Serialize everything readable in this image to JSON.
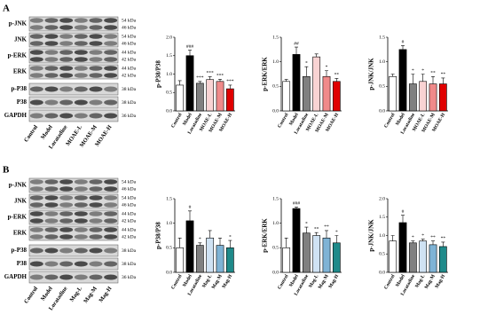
{
  "panels": [
    {
      "label": "A",
      "blot": {
        "rows": [
          {
            "name": "p-JNK",
            "kda": [
              "54 kDa",
              "46 kDa"
            ]
          },
          {
            "name": "JNK",
            "kda": [
              "54 kDa",
              "46 kDa"
            ]
          },
          {
            "name": "p-ERK",
            "kda": [
              "44 kDa",
              "42 kDa"
            ]
          },
          {
            "name": "ERK",
            "kda": [
              "44 kDa",
              "42 kDa"
            ]
          },
          {
            "name": "p-P38",
            "kda": [
              "38 kDa"
            ]
          },
          {
            "name": "P38",
            "kda": [
              "38 kDa"
            ]
          },
          {
            "name": "GAPDH",
            "kda": [
              "36 kDa"
            ]
          }
        ],
        "lanes": [
          "Control",
          "Model",
          "Loratadine",
          "MOAE-L",
          "MOAE-M",
          "MOAE-H"
        ]
      }
    },
    {
      "label": "B",
      "blot": {
        "rows": [
          {
            "name": "p-JNK",
            "kda": [
              "54 kDa",
              "46 kDa"
            ]
          },
          {
            "name": "JNK",
            "kda": [
              "54 kDa",
              "46 kDa"
            ]
          },
          {
            "name": "p-ERK",
            "kda": [
              "44 kDa",
              "42 kDa"
            ]
          },
          {
            "name": "ERK",
            "kda": [
              "44 kDa",
              "42 kDa"
            ]
          },
          {
            "name": "p-P38",
            "kda": [
              "38 kDa"
            ]
          },
          {
            "name": "P38",
            "kda": [
              "38 kDa"
            ]
          },
          {
            "name": "GAPDH",
            "kda": [
              "36 kDa"
            ]
          }
        ],
        "lanes": [
          "Control",
          "Model",
          "Loratadine",
          "Mag-L",
          "Mag-M",
          "Mag-H"
        ]
      }
    }
  ],
  "chart_data": [
    {
      "type": "bar",
      "y_label": "p-P38/P38",
      "categories": [
        "Control",
        "Model",
        "Loratadine",
        "MOAE-L",
        "MOAE-M",
        "MOAE-H"
      ],
      "values": [
        0.7,
        1.5,
        0.75,
        0.85,
        0.8,
        0.6
      ],
      "errors": [
        0.12,
        0.15,
        0.05,
        0.08,
        0.06,
        0.1
      ],
      "colors": [
        "#ffffff",
        "#000000",
        "#808080",
        "#f9d3d3",
        "#f08a8a",
        "#e00000"
      ],
      "annotations": [
        null,
        "###",
        "***",
        "***",
        "***",
        "***"
      ],
      "ylim": [
        0,
        2
      ],
      "yticks": [
        {
          "value": 0,
          "label": "0.0"
        },
        {
          "value": 0.5,
          "label": "0.5"
        },
        {
          "value": 1,
          "label": "1.0"
        },
        {
          "value": 1.5,
          "label": "1.5"
        },
        {
          "value": 2,
          "label": "2.0"
        }
      ]
    },
    {
      "type": "bar",
      "y_label": "p-ERK/ERK",
      "categories": [
        "Control",
        "Model",
        "Loratadine",
        "MOAE-L",
        "MOAE-M",
        "MOAE-H"
      ],
      "values": [
        0.6,
        1.15,
        0.7,
        1.1,
        0.7,
        0.6
      ],
      "errors": [
        0.04,
        0.15,
        0.2,
        0.06,
        0.12,
        0.06
      ],
      "colors": [
        "#ffffff",
        "#000000",
        "#808080",
        "#f9d3d3",
        "#f08a8a",
        "#e00000"
      ],
      "annotations": [
        null,
        "##",
        "*",
        null,
        "*",
        "**"
      ],
      "ylim": [
        0,
        1.5
      ],
      "yticks": [
        {
          "value": 0,
          "label": "0.0"
        },
        {
          "value": 0.5,
          "label": "0.5"
        },
        {
          "value": 1,
          "label": "1.0"
        },
        {
          "value": 1.5,
          "label": "1.5"
        }
      ]
    },
    {
      "type": "bar",
      "y_label": "p-JNK/JNK",
      "categories": [
        "Control",
        "Model",
        "Loratadine",
        "MOAE-L",
        "MOAE-M",
        "MOAE-H"
      ],
      "values": [
        0.7,
        1.25,
        0.55,
        0.6,
        0.55,
        0.55
      ],
      "errors": [
        0.05,
        0.08,
        0.2,
        0.15,
        0.15,
        0.12
      ],
      "colors": [
        "#ffffff",
        "#000000",
        "#808080",
        "#f9d3d3",
        "#f08a8a",
        "#e00000"
      ],
      "annotations": [
        null,
        "#",
        "*",
        "*",
        "**",
        "**"
      ],
      "ylim": [
        0,
        1.5
      ],
      "yticks": [
        {
          "value": 0,
          "label": "0.0"
        },
        {
          "value": 0.5,
          "label": "0.5"
        },
        {
          "value": 1,
          "label": "1.0"
        },
        {
          "value": 1.5,
          "label": "1.5"
        }
      ]
    },
    {
      "type": "bar",
      "y_label": "p-P38/P38",
      "categories": [
        "Control",
        "Model",
        "Loratadine",
        "Mag-L",
        "Mag-M",
        "Mag-H"
      ],
      "values": [
        0.5,
        1.05,
        0.55,
        0.7,
        0.55,
        0.5
      ],
      "errors": [
        0.2,
        0.2,
        0.05,
        0.15,
        0.15,
        0.15
      ],
      "colors": [
        "#ffffff",
        "#000000",
        "#808080",
        "#cfe2f3",
        "#7fb3d5",
        "#1f8a8a"
      ],
      "annotations": [
        null,
        "#",
        "*",
        null,
        null,
        "*"
      ],
      "ylim": [
        0,
        1.5
      ],
      "yticks": [
        {
          "value": 0,
          "label": "0.0"
        },
        {
          "value": 0.5,
          "label": "0.5"
        },
        {
          "value": 1,
          "label": "1.0"
        },
        {
          "value": 1.5,
          "label": "1.5"
        }
      ]
    },
    {
      "type": "bar",
      "y_label": "p-ERK/ERK",
      "categories": [
        "Control",
        "Model",
        "Loratadine",
        "Mag-L",
        "Mag-M",
        "Mag-H"
      ],
      "values": [
        0.5,
        1.3,
        0.8,
        0.75,
        0.7,
        0.6
      ],
      "errors": [
        0.2,
        0.03,
        0.12,
        0.06,
        0.15,
        0.15
      ],
      "colors": [
        "#ffffff",
        "#000000",
        "#808080",
        "#cfe2f3",
        "#7fb3d5",
        "#1f8a8a"
      ],
      "annotations": [
        null,
        "###",
        "*",
        "**",
        "**",
        "*"
      ],
      "ylim": [
        0,
        1.5
      ],
      "yticks": [
        {
          "value": 0,
          "label": "0.0"
        },
        {
          "value": 0.5,
          "label": "0.5"
        },
        {
          "value": 1,
          "label": "1.0"
        },
        {
          "value": 1.5,
          "label": "1.5"
        }
      ]
    },
    {
      "type": "bar",
      "y_label": "p-JNK/JNK",
      "categories": [
        "Control",
        "Model",
        "Loratadine",
        "Mag-L",
        "Mag-M",
        "Mag-H"
      ],
      "values": [
        0.85,
        1.35,
        0.8,
        0.85,
        0.75,
        0.7
      ],
      "errors": [
        0.15,
        0.2,
        0.05,
        0.05,
        0.1,
        0.12
      ],
      "colors": [
        "#ffffff",
        "#000000",
        "#808080",
        "#cfe2f3",
        "#7fb3d5",
        "#1f8a8a"
      ],
      "annotations": [
        null,
        "#",
        "*",
        "*",
        "**",
        "**"
      ],
      "ylim": [
        0,
        2
      ],
      "yticks": [
        {
          "value": 0,
          "label": "0.0"
        },
        {
          "value": 0.5,
          "label": "0.5"
        },
        {
          "value": 1,
          "label": "1.0"
        },
        {
          "value": 1.5,
          "label": "1.5"
        },
        {
          "value": 2,
          "label": "2.0"
        }
      ]
    }
  ]
}
